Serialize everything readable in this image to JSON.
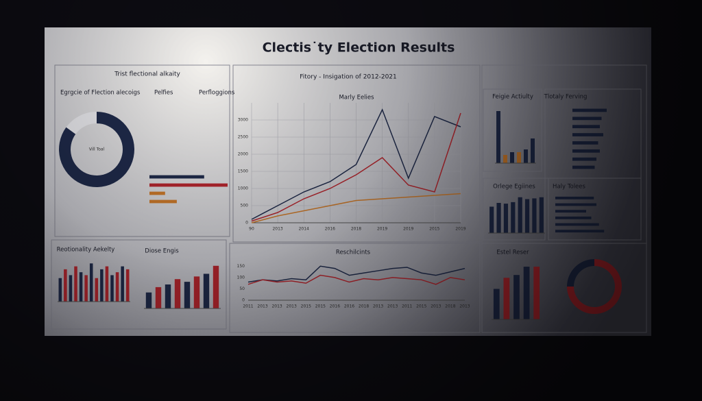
{
  "title": "Clectis˙ty Election Results",
  "panel_headers": [
    "Trist flectional alkaity",
    "Egrgcie of Flection alecoigs",
    "Pelfies",
    "Perfloggions",
    "Fitory - Insigation of 2012-2021"
  ],
  "chart_data": [
    {
      "type": "pie",
      "center_label": "Vill Toal",
      "values": [
        85,
        15
      ],
      "colors": [
        "#1f2a4a",
        "#e8e8ec"
      ]
    },
    {
      "type": "line",
      "title": "Marly Eelies",
      "categories": [
        "90",
        "2013",
        "2014",
        "2016",
        "2018",
        "2019",
        "2019",
        "2015",
        "2019"
      ],
      "ylim": [
        0,
        3500
      ],
      "yticks": [
        0,
        500,
        1000,
        1500,
        2000,
        2500,
        3000
      ],
      "grid": true,
      "series": [
        {
          "name": "Blue",
          "color": "#1f2a4a",
          "values": [
            100,
            500,
            900,
            1200,
            1700,
            3300,
            1300,
            3100,
            2800
          ]
        },
        {
          "name": "Red",
          "color": "#b3262e",
          "values": [
            50,
            300,
            700,
            1000,
            1400,
            1900,
            1100,
            900,
            3200
          ]
        },
        {
          "name": "Orange",
          "color": "#c9782a",
          "values": [
            0,
            200,
            350,
            500,
            650,
            700,
            750,
            800,
            850
          ]
        }
      ]
    },
    {
      "type": "bar",
      "title": "Diose Engis",
      "values": [
        30,
        40,
        45,
        55,
        50,
        60,
        65,
        80
      ],
      "ylim": [
        0,
        90
      ],
      "colors": [
        "#1f2a4a",
        "#b3262e",
        "#1f2a4a",
        "#b3262e",
        "#1f2a4a",
        "#b3262e",
        "#1f2a4a",
        "#b3262e"
      ]
    },
    {
      "type": "bar",
      "title": "Estel Reser",
      "values": [
        55,
        75,
        80,
        95,
        95
      ],
      "ylim": [
        0,
        100
      ],
      "colors": [
        "#1f2a4a",
        "#b3262e",
        "#1f2a4a",
        "#1f2a4a",
        "#b3262e"
      ]
    },
    {
      "type": "bar",
      "title": "Orlege Egiines",
      "values": [
        70,
        80,
        78,
        82,
        95,
        90,
        92,
        95
      ],
      "ylim": [
        0,
        100
      ],
      "colors": [
        "#1f2a4a",
        "#1f2a4a",
        "#1f2a4a",
        "#1f2a4a",
        "#1f2a4a",
        "#1f2a4a",
        "#1f2a4a",
        "#1f2a4a"
      ]
    },
    {
      "type": "bar",
      "title": "Feigie Actiulty",
      "values": [
        95,
        15,
        20,
        20,
        25,
        45
      ],
      "ylim": [
        0,
        100
      ],
      "colors": [
        "#1f2a4a",
        "#c9782a",
        "#1f2a4a",
        "#c9782a",
        "#1f2a4a",
        "#1f2a4a"
      ]
    },
    {
      "type": "line",
      "title": "Reschilcints",
      "categories": [
        "2011",
        "2013",
        "2013",
        "2013",
        "2015",
        "2015",
        "2016",
        "2016",
        "2018",
        "2013",
        "2013",
        "2011",
        "2015",
        "2013",
        "2018",
        "2013"
      ],
      "ylim": [
        0,
        160
      ],
      "yticks": [
        0,
        50,
        100,
        150
      ],
      "grid": false,
      "series": [
        {
          "name": "Blue",
          "color": "#1f2a4a",
          "values": [
            80,
            90,
            85,
            95,
            90,
            150,
            140,
            110,
            120,
            130,
            140,
            145,
            120,
            110,
            125,
            140
          ]
        },
        {
          "name": "Red",
          "color": "#b3262e",
          "values": [
            70,
            90,
            80,
            85,
            75,
            110,
            100,
            80,
            95,
            90,
            100,
            95,
            90,
            70,
            100,
            90
          ]
        }
      ]
    },
    {
      "type": "pie",
      "values": [
        75,
        25
      ],
      "colors": [
        "#b3262e",
        "#1f2a4a"
      ]
    },
    {
      "type": "hbar",
      "title": "Tlotaly Ferving",
      "values": [
        100,
        85,
        80,
        90,
        75,
        80,
        70,
        65
      ],
      "xlim": [
        0,
        100
      ],
      "color": "#1f2a4a"
    },
    {
      "type": "hbar",
      "title": "Haly Tolees",
      "values": [
        75,
        80,
        60,
        70,
        85,
        95
      ],
      "xlim": [
        0,
        100
      ],
      "color": "#1f2a4a"
    },
    {
      "type": "bar",
      "title": "Reotionality Aekelty",
      "values": [
        40,
        55,
        45,
        60,
        50,
        45,
        65,
        40,
        55,
        60,
        45,
        50,
        60,
        55
      ],
      "ylim": [
        0,
        70
      ],
      "colors": [
        "#1f2a4a",
        "#b3262e",
        "#1f2a4a",
        "#b3262e",
        "#1f2a4a",
        "#b3262e",
        "#1f2a4a",
        "#b3262e",
        "#1f2a4a",
        "#b3262e",
        "#1f2a4a",
        "#b3262e",
        "#1f2a4a",
        "#b3262e"
      ]
    },
    {
      "type": "hbar",
      "values": [
        70,
        100,
        20,
        35
      ],
      "xlim": [
        0,
        100
      ],
      "colors": [
        "#1f2a4a",
        "#b3262e",
        "#c9782a",
        "#c9782a"
      ]
    }
  ]
}
